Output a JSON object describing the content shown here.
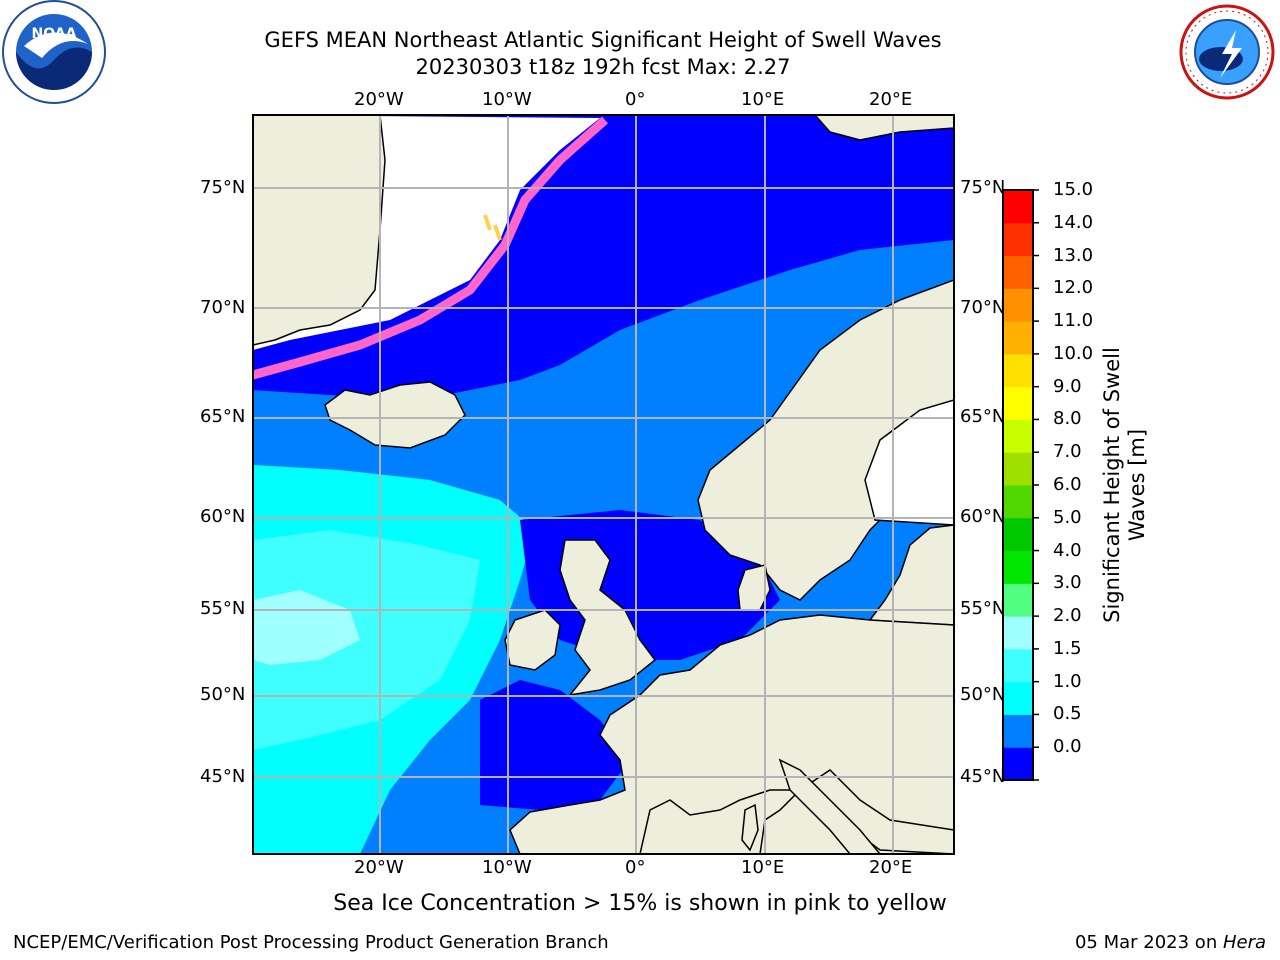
{
  "title": {
    "line1": "GEFS MEAN Northeast Atlantic Significant Height of Swell Waves",
    "line2": "20230303 t18z 192h fcst   Max: 2.27"
  },
  "logos": {
    "left": {
      "icon": "noaa-logo-icon",
      "text": "NOAA"
    },
    "right": {
      "icon": "nws-logo-icon",
      "text": "NATIONAL WEATHER SERVICE"
    }
  },
  "map": {
    "lon_ticks": [
      "20°W",
      "10°W",
      "0°",
      "10°E",
      "20°E"
    ],
    "lat_ticks": [
      "75°N",
      "70°N",
      "65°N",
      "60°N",
      "55°N",
      "50°N",
      "45°N"
    ],
    "colors": {
      "land": "#eeeedd",
      "ice_free_white": "#ffffff",
      "grid": "#b4b4b4",
      "coast": "#000000"
    }
  },
  "colorbar": {
    "title": "Significant Height of Swell Waves [m]",
    "labels": [
      "15.0",
      "14.0",
      "13.0",
      "12.0",
      "11.0",
      "10.0",
      "9.0",
      "8.0",
      "7.0",
      "6.0",
      "5.0",
      "4.0",
      "3.0",
      "2.0",
      "1.5",
      "1.0",
      "0.5",
      "0.0"
    ],
    "colors": [
      "#0000ff",
      "#0080ff",
      "#00ffff",
      "#40ffff",
      "#a0ffff",
      "#50ff80",
      "#00e600",
      "#00c800",
      "#50d800",
      "#a0e000",
      "#c8ff00",
      "#ffff00",
      "#ffe000",
      "#ffb000",
      "#ff9000",
      "#ff6000",
      "#ff3000",
      "#ff0000"
    ]
  },
  "note": "Sea Ice Concentration > 15% is shown in pink to yellow",
  "footer": {
    "left": "NCEP/EMC/Verification Post Processing Product Generation Branch",
    "right_date": "05 Mar 2023 on ",
    "right_host": "Hera"
  }
}
